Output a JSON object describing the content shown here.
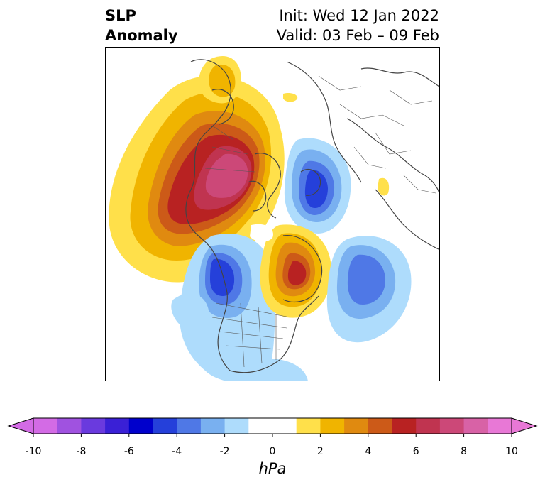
{
  "title": {
    "left_line1": "SLP",
    "left_line2": "Anomaly",
    "right_line1": "Init: Wed 12 Jan 2022",
    "right_line2": "Valid: 03 Feb – 09 Feb"
  },
  "colorbar": {
    "label": "hPa",
    "ticks": [
      "-10",
      "-8",
      "-6",
      "-4",
      "-2",
      "0",
      "2",
      "4",
      "6",
      "8",
      "10"
    ],
    "tick_values": [
      -10,
      -8,
      -6,
      -4,
      -2,
      0,
      2,
      4,
      6,
      8,
      10
    ],
    "levels": [
      -10,
      -9,
      -8,
      -7,
      -6,
      -5,
      -4,
      -3,
      -2,
      -1,
      1,
      2,
      3,
      4,
      5,
      6,
      7,
      8,
      9,
      10
    ],
    "colors": [
      "#d36be5",
      "#a052e0",
      "#6a3ade",
      "#3a20d6",
      "#0000cc",
      "#2540da",
      "#4f78e6",
      "#79b0f0",
      "#aedcfc",
      "#ffffff",
      "#ffe04a",
      "#f0b400",
      "#e08a10",
      "#cc5a18",
      "#b82222",
      "#c03450",
      "#cc4878",
      "#d862a6",
      "#e878d6"
    ],
    "extend_under_color": "#d36be5",
    "extend_over_color": "#e878d6"
  },
  "map": {
    "projection": "north-polar-stereographic",
    "colors": {
      "coastline": "#444444",
      "border": "#555555"
    }
  }
}
